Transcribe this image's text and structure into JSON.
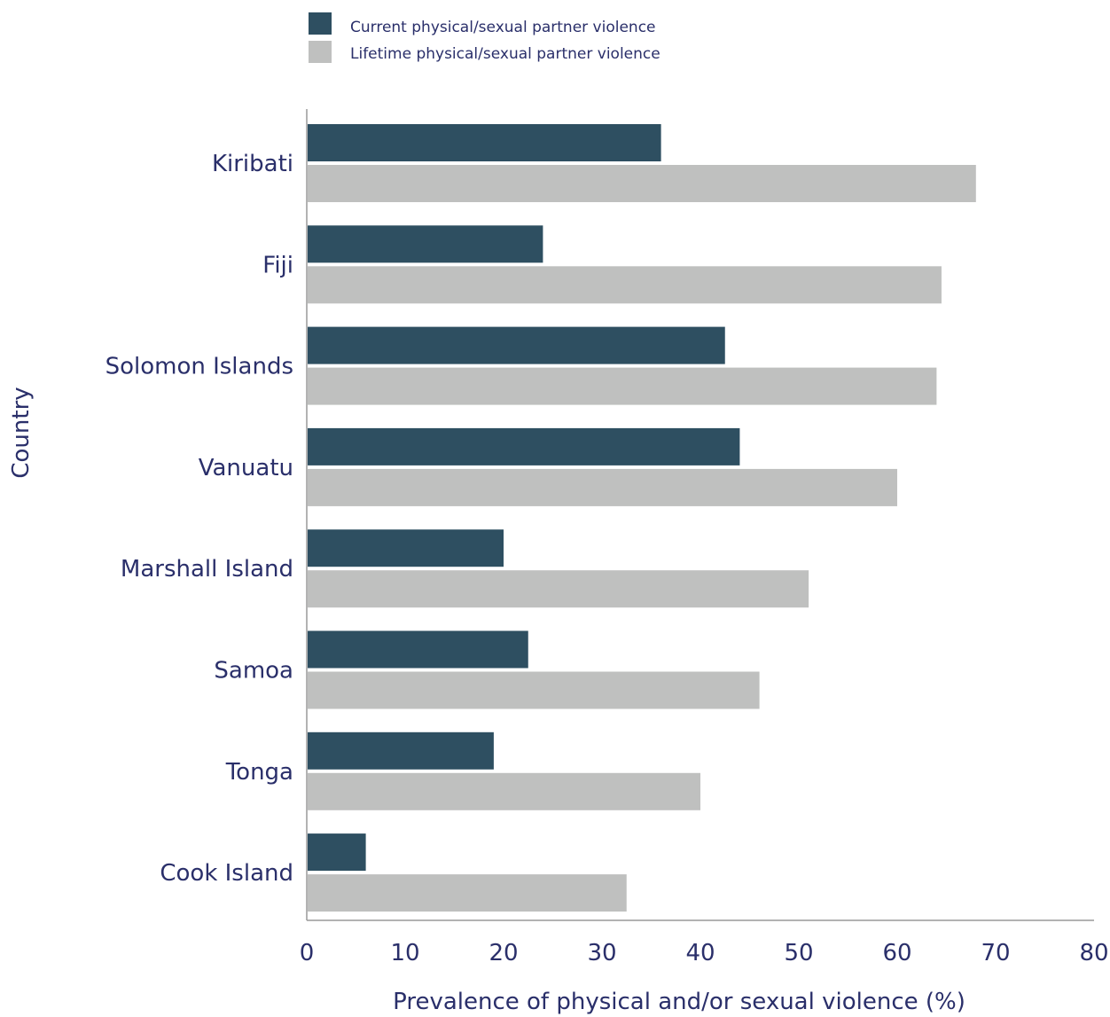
{
  "chart_data": {
    "type": "bar",
    "orientation": "horizontal",
    "categories": [
      "Kiribati",
      "Fiji",
      "Solomon Islands",
      "Vanuatu",
      "Marshall Island",
      "Samoa",
      "Tonga",
      "Cook Island"
    ],
    "series": [
      {
        "name": "Current physical/sexual partner violence",
        "color": "#2e4f61",
        "values": [
          36,
          24,
          42.5,
          44,
          20,
          22.5,
          19,
          6
        ]
      },
      {
        "name": "Lifetime  physical/sexual partner violence",
        "color": "#bfc0bf",
        "values": [
          68,
          64.5,
          64,
          60,
          51,
          46,
          40,
          32.5
        ]
      }
    ],
    "xlabel": "Prevalence of physical and/or sexual violence (%)",
    "ylabel": "Country",
    "xlim": [
      0,
      80
    ],
    "xticks": [
      "0",
      "10",
      "20",
      "30",
      "40",
      "50",
      "60",
      "70",
      "80"
    ],
    "grid": false,
    "legend_position": "top-center"
  }
}
